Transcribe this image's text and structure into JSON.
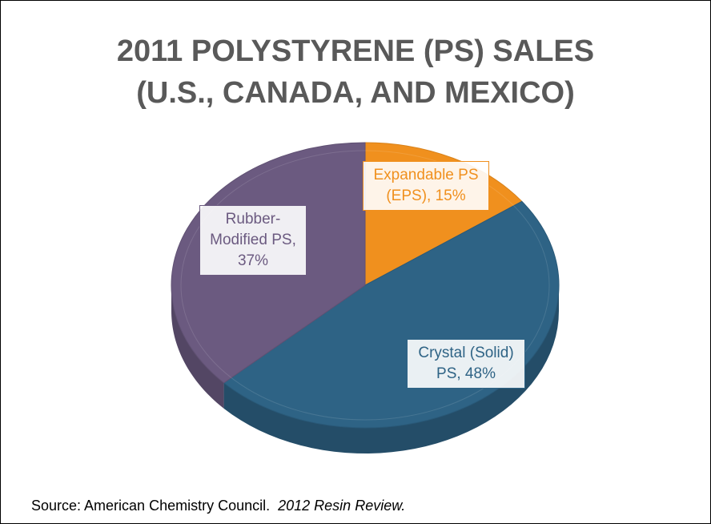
{
  "chart_data": {
    "type": "pie",
    "title": [
      "2011 POLYSTYRENE (PS) SALES",
      "(U.S., CANADA, AND MEXICO)"
    ],
    "labels": [
      "Expandable PS (EPS), 15%",
      "Crystal (Solid) PS, 48%",
      "Rubber-Modified PS, 37%"
    ],
    "values": [
      15,
      48,
      37
    ],
    "colors": [
      "#f0901e",
      "#2e6385",
      "#6b5a80"
    ],
    "source": "Source: American Chemistry Council.",
    "source_title": "2012 Resin Review."
  }
}
